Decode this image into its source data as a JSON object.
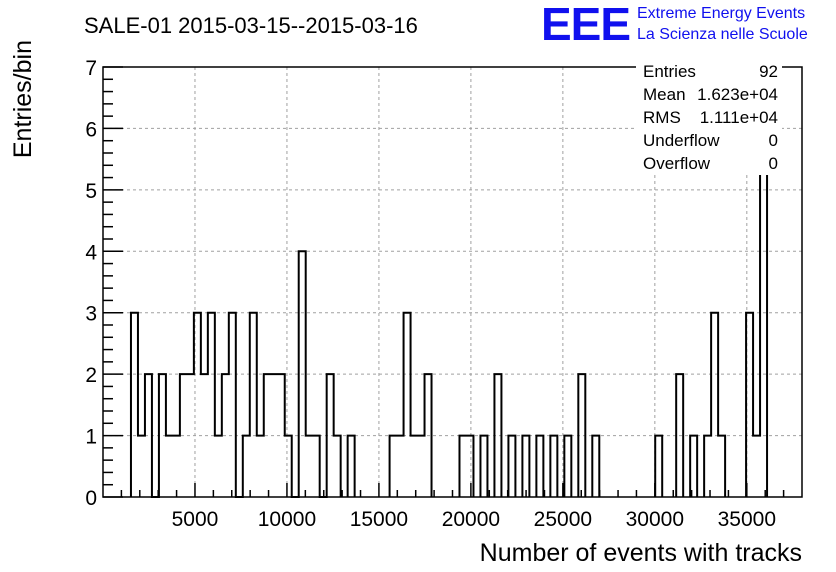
{
  "header": {
    "title": "SALE-01 2015-03-15--2015-03-16",
    "logo_text": "EEE",
    "logo_line1": "Extreme Energy Events",
    "logo_line2": "La Scienza nelle Scuole",
    "logo_color": "#1010ee"
  },
  "stats": [
    {
      "label": "Entries",
      "value": "92"
    },
    {
      "label": "Mean",
      "value": "1.623e+04"
    },
    {
      "label": "RMS",
      "value": "1.111e+04"
    },
    {
      "label": "Underflow",
      "value": "0"
    },
    {
      "label": "Overflow",
      "value": "0"
    }
  ],
  "chart_data": {
    "type": "bar",
    "title": "SALE-01 2015-03-15--2015-03-16",
    "xlabel": "Number of events with tracks",
    "ylabel": "Entries/bin",
    "xlim": [
      0,
      38000
    ],
    "ylim": [
      0,
      7
    ],
    "xticks": [
      5000,
      10000,
      15000,
      20000,
      25000,
      30000,
      35000
    ],
    "xtick_labels": [
      "5000",
      "10000",
      "15000",
      "20000",
      "25000",
      "30000",
      "35000"
    ],
    "yticks": [
      0,
      1,
      2,
      3,
      4,
      5,
      6,
      7
    ],
    "ytick_labels": [
      "0",
      "1",
      "2",
      "3",
      "4",
      "5",
      "6",
      "7"
    ],
    "grid": true,
    "bin_width": 380,
    "bins": [
      {
        "x": 1520,
        "count": 3
      },
      {
        "x": 1900,
        "count": 1
      },
      {
        "x": 2280,
        "count": 2
      },
      {
        "x": 2660,
        "count": 0
      },
      {
        "x": 3040,
        "count": 2
      },
      {
        "x": 3420,
        "count": 1
      },
      {
        "x": 3800,
        "count": 1
      },
      {
        "x": 4180,
        "count": 2
      },
      {
        "x": 4560,
        "count": 2
      },
      {
        "x": 4940,
        "count": 3
      },
      {
        "x": 5320,
        "count": 2
      },
      {
        "x": 5700,
        "count": 3
      },
      {
        "x": 6080,
        "count": 1
      },
      {
        "x": 6460,
        "count": 2
      },
      {
        "x": 6840,
        "count": 3
      },
      {
        "x": 7220,
        "count": 0
      },
      {
        "x": 7600,
        "count": 1
      },
      {
        "x": 7980,
        "count": 3
      },
      {
        "x": 8360,
        "count": 1
      },
      {
        "x": 8740,
        "count": 2
      },
      {
        "x": 9120,
        "count": 2
      },
      {
        "x": 9500,
        "count": 2
      },
      {
        "x": 9880,
        "count": 1
      },
      {
        "x": 10260,
        "count": 0
      },
      {
        "x": 10640,
        "count": 4
      },
      {
        "x": 11020,
        "count": 1
      },
      {
        "x": 11400,
        "count": 1
      },
      {
        "x": 11780,
        "count": 0
      },
      {
        "x": 12160,
        "count": 2
      },
      {
        "x": 12540,
        "count": 1
      },
      {
        "x": 13300,
        "count": 1
      },
      {
        "x": 15580,
        "count": 1
      },
      {
        "x": 15960,
        "count": 1
      },
      {
        "x": 16340,
        "count": 3
      },
      {
        "x": 16720,
        "count": 1
      },
      {
        "x": 17100,
        "count": 1
      },
      {
        "x": 17480,
        "count": 2
      },
      {
        "x": 19380,
        "count": 1
      },
      {
        "x": 19760,
        "count": 1
      },
      {
        "x": 20520,
        "count": 1
      },
      {
        "x": 21280,
        "count": 2
      },
      {
        "x": 22040,
        "count": 1
      },
      {
        "x": 22800,
        "count": 1
      },
      {
        "x": 23560,
        "count": 1
      },
      {
        "x": 24320,
        "count": 1
      },
      {
        "x": 25080,
        "count": 1
      },
      {
        "x": 25840,
        "count": 2
      },
      {
        "x": 26600,
        "count": 1
      },
      {
        "x": 30020,
        "count": 1
      },
      {
        "x": 31160,
        "count": 2
      },
      {
        "x": 31920,
        "count": 1
      },
      {
        "x": 32680,
        "count": 1
      },
      {
        "x": 33060,
        "count": 3
      },
      {
        "x": 33440,
        "count": 1
      },
      {
        "x": 34960,
        "count": 3
      },
      {
        "x": 35340,
        "count": 1
      },
      {
        "x": 35720,
        "count": 7
      }
    ]
  }
}
